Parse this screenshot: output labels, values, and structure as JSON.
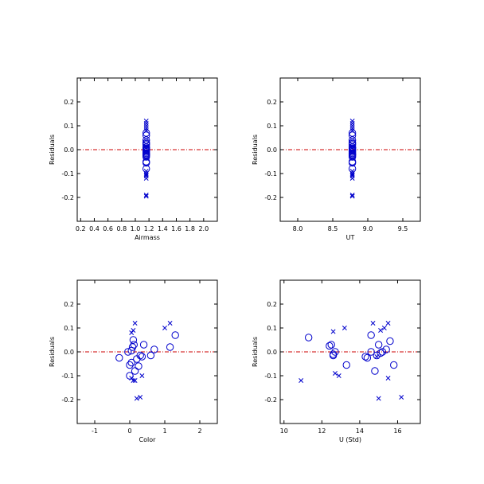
{
  "colors": {
    "points": "#0000cc",
    "zero_line": "#cc0000",
    "axes": "#000000"
  },
  "chart_data": [
    {
      "type": "scatter",
      "xlabel": "Airmass",
      "ylabel": "Residuals",
      "xlim": [
        0.15,
        2.2
      ],
      "ylim": [
        -0.3,
        0.3
      ],
      "xticks": [
        0.2,
        0.4,
        0.6,
        0.8,
        1.0,
        1.2,
        1.4,
        1.6,
        1.8,
        2.0
      ],
      "xtick_labels": [
        "0.2",
        "0.4",
        "0.6",
        "0.8",
        "1.0",
        "1.2",
        "1.4",
        "1.6",
        "1.8",
        "2.0"
      ],
      "yticks": [
        -0.2,
        -0.1,
        0.0,
        0.1,
        0.2
      ],
      "ytick_labels": [
        "-0.2",
        "-0.1",
        "0.0",
        "0.1",
        "0.2"
      ],
      "zero_line": true,
      "series": [
        {
          "marker": "circle",
          "x": [
            1.16,
            1.16,
            1.16,
            1.16,
            1.16,
            1.16,
            1.16,
            1.16,
            1.16,
            1.16,
            1.16,
            1.16,
            1.16,
            1.16,
            1.16,
            1.16,
            1.16,
            1.16,
            1.16,
            1.16,
            1.16
          ],
          "y": [
            0.07,
            0.06,
            0.04,
            0.03,
            0.025,
            0.02,
            0.01,
            0.005,
            0.0,
            -0.005,
            -0.01,
            -0.015,
            -0.02,
            -0.02,
            -0.025,
            -0.03,
            -0.05,
            -0.055,
            -0.08,
            0.0,
            0.01
          ]
        },
        {
          "marker": "x",
          "x": [
            1.16,
            1.16,
            1.16,
            1.16,
            1.16,
            1.16,
            1.16,
            1.16,
            1.16,
            1.16,
            1.16,
            1.16
          ],
          "y": [
            0.12,
            0.11,
            0.1,
            0.09,
            0.08,
            -0.09,
            -0.1,
            -0.105,
            -0.11,
            -0.12,
            -0.19,
            -0.195
          ]
        }
      ]
    },
    {
      "type": "scatter",
      "xlabel": "UT",
      "ylabel": "Residuals",
      "xlim": [
        7.75,
        9.75
      ],
      "ylim": [
        -0.3,
        0.3
      ],
      "xticks": [
        8.0,
        8.5,
        9.0,
        9.5
      ],
      "xtick_labels": [
        "8.0",
        "8.5",
        "9.0",
        "9.5"
      ],
      "yticks": [
        -0.2,
        -0.1,
        0.0,
        0.1,
        0.2
      ],
      "ytick_labels": [
        "-0.2",
        "-0.1",
        "0.0",
        "0.1",
        "0.2"
      ],
      "zero_line": true,
      "series": [
        {
          "marker": "circle",
          "x": [
            8.78,
            8.78,
            8.78,
            8.78,
            8.78,
            8.78,
            8.78,
            8.78,
            8.78,
            8.78,
            8.78,
            8.78,
            8.78,
            8.78,
            8.78,
            8.78,
            8.78,
            8.78,
            8.78,
            8.78,
            8.78
          ],
          "y": [
            0.07,
            0.06,
            0.04,
            0.03,
            0.025,
            0.02,
            0.01,
            0.005,
            0.0,
            -0.005,
            -0.01,
            -0.015,
            -0.02,
            -0.02,
            -0.025,
            -0.03,
            -0.05,
            -0.055,
            -0.08,
            0.0,
            0.01
          ]
        },
        {
          "marker": "x",
          "x": [
            8.78,
            8.78,
            8.78,
            8.78,
            8.78,
            8.78,
            8.78,
            8.78,
            8.78,
            8.78,
            8.78,
            8.78
          ],
          "y": [
            0.12,
            0.11,
            0.1,
            0.09,
            0.08,
            -0.09,
            -0.1,
            -0.105,
            -0.11,
            -0.12,
            -0.19,
            -0.195
          ]
        }
      ]
    },
    {
      "type": "scatter",
      "xlabel": "Color",
      "ylabel": "Residuals",
      "xlim": [
        -1.5,
        2.5
      ],
      "ylim": [
        -0.3,
        0.3
      ],
      "xticks": [
        -1,
        0,
        1,
        2
      ],
      "xtick_labels": [
        "-1",
        "0",
        "1",
        "2"
      ],
      "yticks": [
        -0.2,
        -0.1,
        0.0,
        0.1,
        0.2
      ],
      "ytick_labels": [
        "-0.2",
        "-0.1",
        "0.0",
        "0.1",
        "0.2"
      ],
      "zero_line": true,
      "series": [
        {
          "marker": "circle",
          "x": [
            -0.3,
            -0.05,
            0.0,
            0.05,
            0.08,
            0.1,
            0.12,
            0.15,
            0.0,
            0.2,
            0.25,
            0.3,
            0.35,
            0.4,
            0.6,
            0.7,
            1.15,
            1.3,
            0.05
          ],
          "y": [
            -0.025,
            0.0,
            -0.055,
            0.005,
            0.02,
            0.05,
            0.03,
            -0.08,
            -0.1,
            -0.03,
            -0.06,
            -0.015,
            -0.02,
            0.03,
            -0.015,
            0.01,
            0.02,
            0.07,
            -0.045
          ]
        },
        {
          "marker": "x",
          "x": [
            0.05,
            0.1,
            0.15,
            0.2,
            0.3,
            0.35,
            0.15,
            1.0,
            1.15,
            0.05,
            0.1
          ],
          "y": [
            0.08,
            0.09,
            0.12,
            -0.195,
            -0.19,
            -0.1,
            -0.12,
            0.1,
            0.12,
            -0.11,
            -0.12
          ]
        }
      ]
    },
    {
      "type": "scatter",
      "xlabel": "U (Std)",
      "ylabel": "Residuals",
      "xlim": [
        9.8,
        17.2
      ],
      "ylim": [
        -0.3,
        0.3
      ],
      "xticks": [
        10,
        12,
        14,
        16
      ],
      "xtick_labels": [
        "10",
        "12",
        "14",
        "16"
      ],
      "yticks": [
        -0.2,
        -0.1,
        0.0,
        0.1,
        0.2
      ],
      "ytick_labels": [
        "-0.2",
        "-0.1",
        "0.0",
        "0.1",
        "0.2"
      ],
      "zero_line": true,
      "series": [
        {
          "marker": "circle",
          "x": [
            11.3,
            12.4,
            12.5,
            12.6,
            12.7,
            13.3,
            14.3,
            14.4,
            14.6,
            14.6,
            14.8,
            15.0,
            15.1,
            15.2,
            15.4,
            15.6,
            15.8,
            14.9,
            12.6
          ],
          "y": [
            0.06,
            0.025,
            0.03,
            -0.01,
            0.0,
            -0.055,
            -0.02,
            -0.025,
            0.0,
            0.07,
            -0.08,
            0.03,
            -0.005,
            0.0,
            0.01,
            0.045,
            -0.055,
            -0.015,
            -0.015
          ],
          "note_": ""
        },
        {
          "marker": "x",
          "x": [
            10.9,
            12.6,
            12.7,
            12.9,
            13.2,
            14.7,
            14.9,
            15.1,
            15.3,
            15.5,
            15.0,
            16.2,
            15.5
          ],
          "y": [
            -0.12,
            0.085,
            -0.09,
            -0.1,
            0.1,
            0.12,
            -0.02,
            0.09,
            0.1,
            0.12,
            -0.195,
            -0.19,
            -0.11
          ]
        }
      ]
    }
  ]
}
